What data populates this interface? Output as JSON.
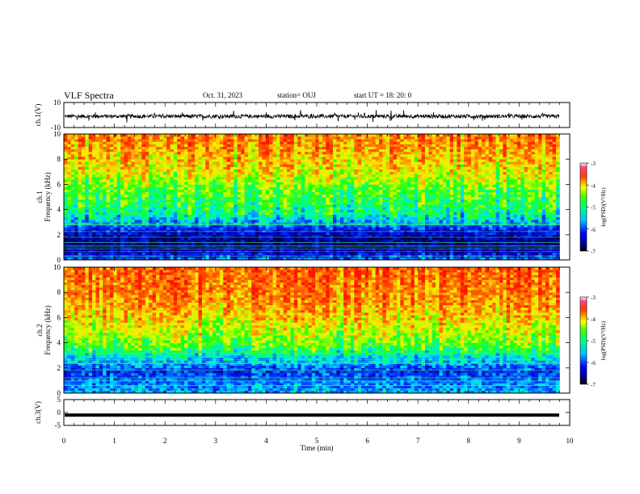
{
  "header": {
    "title": "VLF Spectra",
    "date": "Oct. 31, 2023",
    "station": "station= OUJ",
    "start": "start  UT  =   18: 20: 0"
  },
  "chart_data": [
    {
      "type": "line",
      "panel": "waveform-ch1",
      "ylabel": "ch.1(V)",
      "ylim": [
        -10,
        10
      ],
      "y_ticks": [
        "10",
        "-10"
      ],
      "xlim": [
        0,
        10
      ],
      "series": [
        {
          "values_description_level": -1,
          "amplitude": 1.5
        }
      ],
      "color": "#000000"
    },
    {
      "type": "heatmap",
      "panel": "spectrogram-ch1",
      "ylabel": "ch.1\nFrequency (kHz)",
      "ylabel_lines": [
        "ch.1",
        "Frequency (kHz)"
      ],
      "ylim": [
        0,
        10
      ],
      "y_ticks": [
        "0",
        "2",
        "4",
        "6",
        "8",
        "10"
      ],
      "xlim": [
        0,
        9.8
      ],
      "colorbar": {
        "label": "log(PSD)(V²/Hz)",
        "range": [
          -7,
          -3
        ],
        "ticks": [
          "-3",
          "-4",
          "-5",
          "-6",
          "-7"
        ]
      },
      "profile_log_psd_by_freq_khz": [
        [
          0.2,
          -6.0
        ],
        [
          0.7,
          -6.6
        ],
        [
          1.2,
          -6.8
        ],
        [
          1.7,
          -6.7
        ],
        [
          2.2,
          -6.4
        ],
        [
          2.7,
          -6.0
        ],
        [
          3.2,
          -5.5
        ],
        [
          3.7,
          -5.1
        ],
        [
          4.5,
          -4.9
        ],
        [
          5.5,
          -4.7
        ],
        [
          6.5,
          -4.3
        ],
        [
          7.5,
          -4.0
        ],
        [
          8.5,
          -3.8
        ],
        [
          9.5,
          -3.6
        ]
      ]
    },
    {
      "type": "heatmap",
      "panel": "spectrogram-ch2",
      "ylabel_lines": [
        "ch.2",
        "Frequency (kHz)"
      ],
      "ylim": [
        0,
        10
      ],
      "y_ticks": [
        "0",
        "2",
        "4",
        "6",
        "8",
        "10"
      ],
      "xlim": [
        0,
        9.8
      ],
      "colorbar": {
        "label": "log(PSD)(V²/Hz)",
        "range": [
          -7,
          -3
        ],
        "ticks": [
          "-3",
          "-4",
          "-5",
          "-6",
          "-7"
        ]
      },
      "profile_log_psd_by_freq_khz": [
        [
          0.2,
          -5.6
        ],
        [
          0.7,
          -5.8
        ],
        [
          1.2,
          -6.0
        ],
        [
          1.7,
          -6.1
        ],
        [
          2.2,
          -5.8
        ],
        [
          2.7,
          -5.5
        ],
        [
          3.2,
          -5.1
        ],
        [
          3.7,
          -4.7
        ],
        [
          4.5,
          -4.4
        ],
        [
          5.5,
          -4.1
        ],
        [
          6.5,
          -3.8
        ],
        [
          7.5,
          -3.6
        ],
        [
          8.5,
          -3.5
        ],
        [
          9.5,
          -3.4
        ]
      ]
    },
    {
      "type": "line",
      "panel": "waveform-ch3",
      "ylabel": "ch.3(V)",
      "ylim": [
        -5,
        5
      ],
      "y_ticks": [
        "5",
        "0",
        "-5"
      ],
      "xlim": [
        0,
        10
      ],
      "series": [
        {
          "constant_value": -1
        }
      ],
      "color": "#000000"
    }
  ],
  "x_axis": {
    "label": "Time (min)",
    "ticks": [
      "0",
      "1",
      "2",
      "3",
      "4",
      "5",
      "6",
      "7",
      "8",
      "9",
      "10"
    ],
    "range": [
      0,
      10
    ]
  },
  "colormap": [
    "#000080",
    "#0000ff",
    "#0080ff",
    "#00ffff",
    "#00ff80",
    "#00ff00",
    "#80ff00",
    "#ffff00",
    "#ff8000",
    "#ff0000"
  ]
}
